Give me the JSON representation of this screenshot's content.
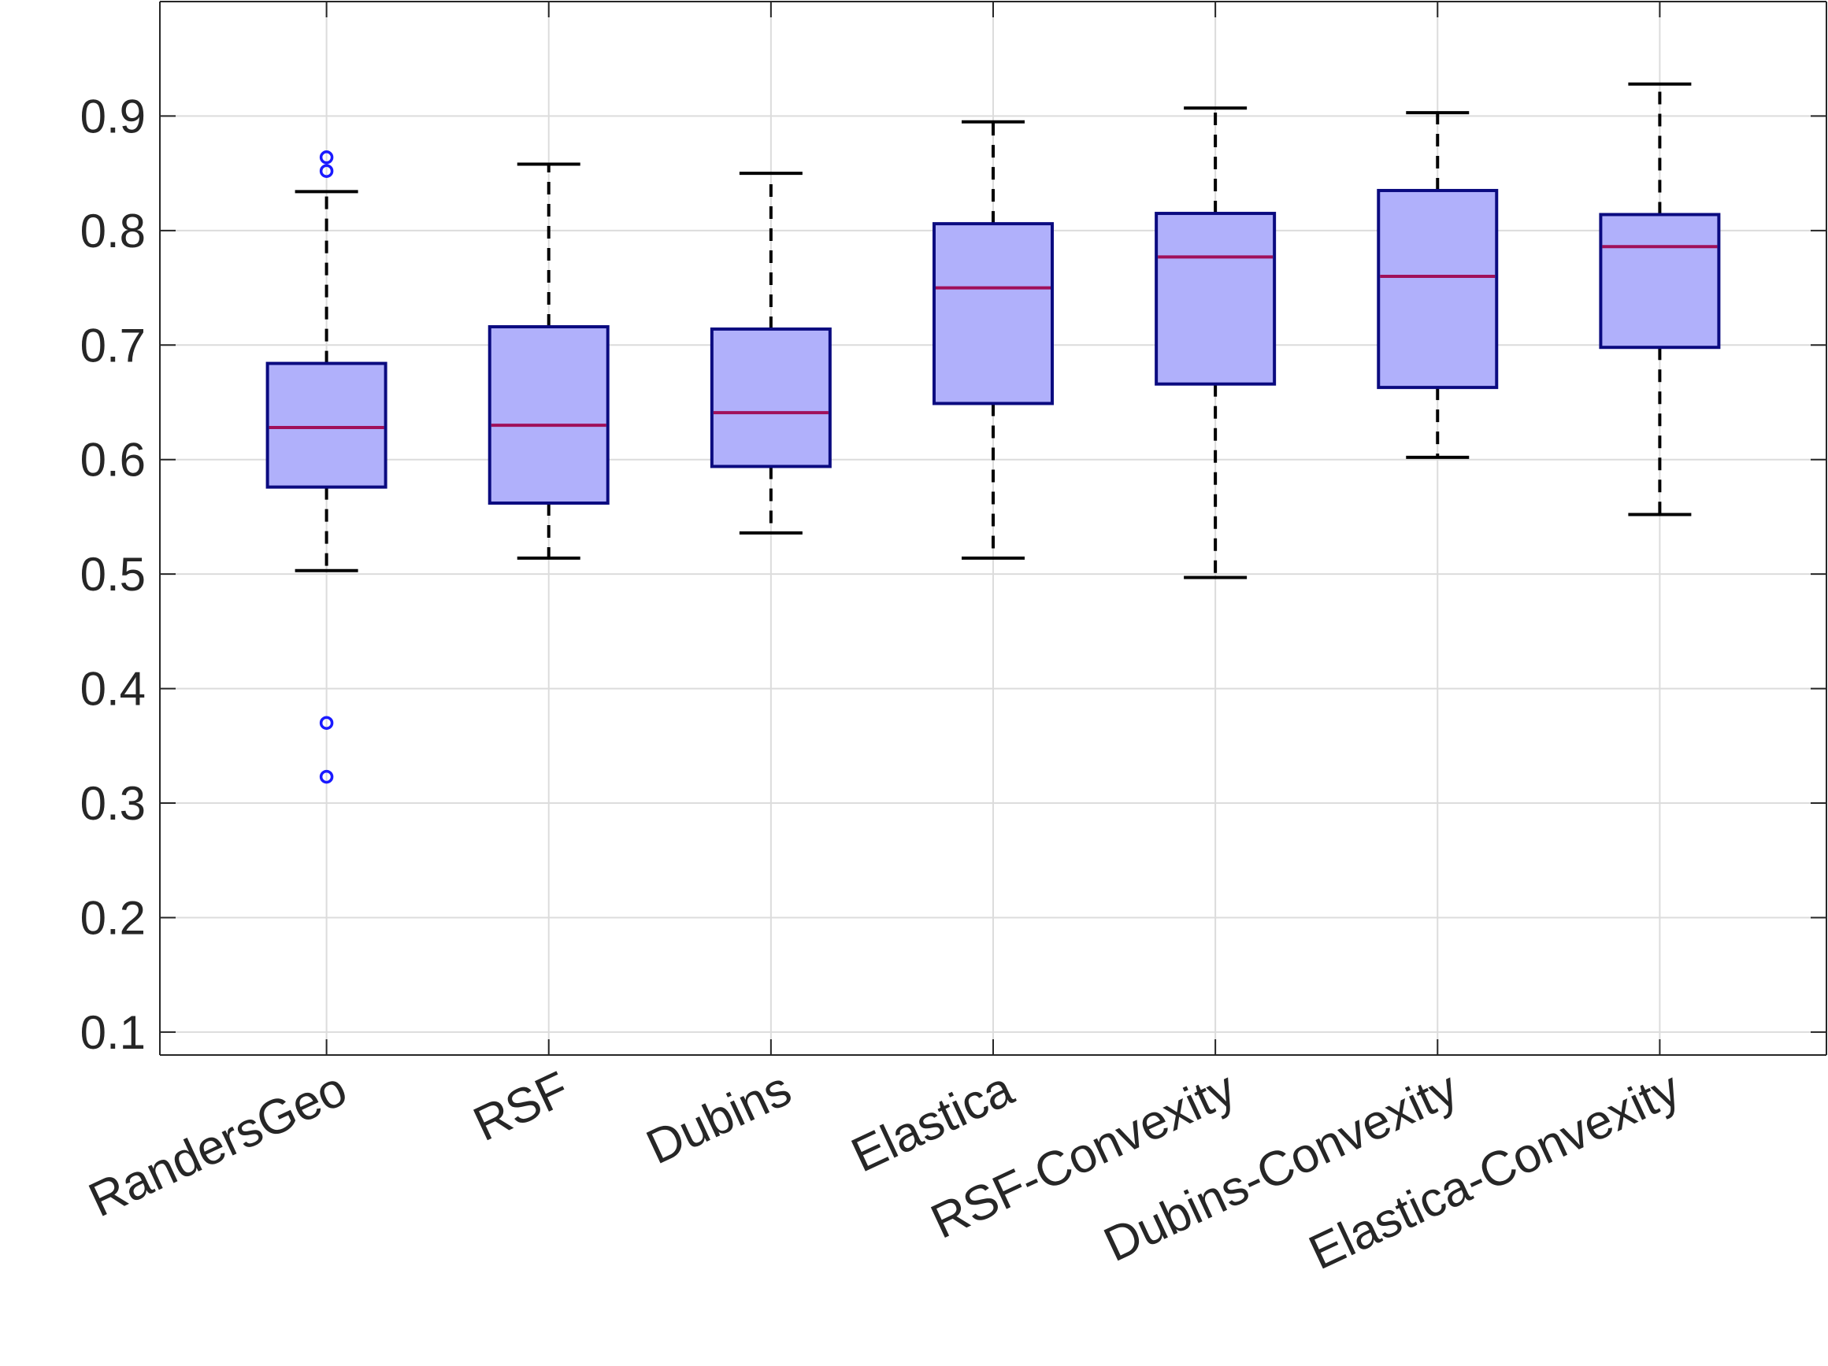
{
  "chart_data": {
    "type": "boxplot",
    "title": "",
    "xlabel": "",
    "ylabel": "",
    "ylim": [
      0.08,
      1.0
    ],
    "yticks": [
      0.1,
      0.2,
      0.3,
      0.4,
      0.5,
      0.6,
      0.7,
      0.8,
      0.9
    ],
    "ytick_labels": [
      "0.1",
      "0.2",
      "0.3",
      "0.4",
      "0.5",
      "0.6",
      "0.7",
      "0.8",
      "0.9"
    ],
    "grid": true,
    "colors": {
      "box_fill": "#b0b0fb",
      "box_edge": "#0b0b80",
      "median": "#a0105a",
      "whisker": "#000000",
      "outlier": "#1a1aff",
      "grid": "#dcdcdc",
      "axis": "#262626"
    },
    "categories": [
      "RandersGeo",
      "RSF",
      "Dubins",
      "Elastica",
      "RSF-Convexity",
      "Dubins-Convexity",
      "Elastica-Convexity"
    ],
    "boxes": [
      {
        "name": "RandersGeo",
        "whisker_low": 0.503,
        "q1": 0.576,
        "median": 0.628,
        "q3": 0.684,
        "whisker_high": 0.834,
        "outliers": [
          0.852,
          0.864,
          0.37,
          0.323
        ]
      },
      {
        "name": "RSF",
        "whisker_low": 0.514,
        "q1": 0.562,
        "median": 0.63,
        "q3": 0.716,
        "whisker_high": 0.858,
        "outliers": []
      },
      {
        "name": "Dubins",
        "whisker_low": 0.536,
        "q1": 0.594,
        "median": 0.641,
        "q3": 0.714,
        "whisker_high": 0.85,
        "outliers": []
      },
      {
        "name": "Elastica",
        "whisker_low": 0.514,
        "q1": 0.649,
        "median": 0.75,
        "q3": 0.806,
        "whisker_high": 0.895,
        "outliers": []
      },
      {
        "name": "RSF-Convexity",
        "whisker_low": 0.497,
        "q1": 0.666,
        "median": 0.777,
        "q3": 0.815,
        "whisker_high": 0.907,
        "outliers": []
      },
      {
        "name": "Dubins-Convexity",
        "whisker_low": 0.602,
        "q1": 0.663,
        "median": 0.76,
        "q3": 0.835,
        "whisker_high": 0.903,
        "outliers": []
      },
      {
        "name": "Elastica-Convexity",
        "whisker_low": 0.552,
        "q1": 0.698,
        "median": 0.786,
        "q3": 0.814,
        "whisker_high": 0.928,
        "outliers": []
      }
    ]
  }
}
